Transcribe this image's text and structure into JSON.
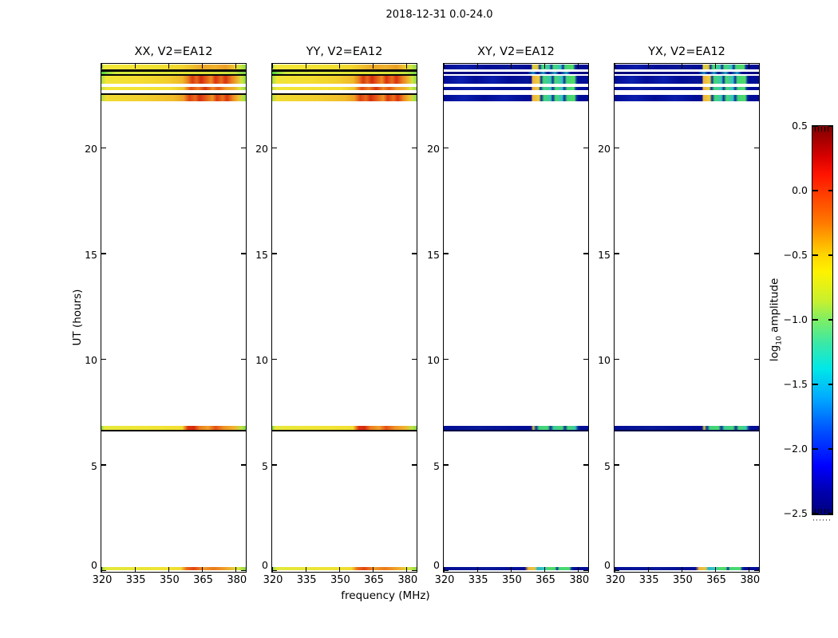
{
  "figure": {
    "title": "2018-12-31 0.0-24.0",
    "xlabel": "frequency (MHz)",
    "ylabel": "UT (hours)"
  },
  "panels": [
    {
      "id": "xx",
      "title": "XX, V2=EA12",
      "pol": "warm"
    },
    {
      "id": "yy",
      "title": "YY, V2=EA12",
      "pol": "warm"
    },
    {
      "id": "xy",
      "title": "XY, V2=EA12",
      "pol": "cool"
    },
    {
      "id": "yx",
      "title": "YX, V2=EA12",
      "pol": "cool"
    }
  ],
  "axes": {
    "x_ticks": [
      320,
      335,
      350,
      365,
      380
    ],
    "x_range": [
      320,
      384
    ],
    "y_ticks": [
      0,
      5,
      10,
      15,
      20
    ],
    "y_range": [
      0,
      24
    ]
  },
  "colorbar": {
    "label_prefix": "log",
    "label_sub": "10",
    "label_suffix": " amplitude",
    "min": -2.5,
    "max": 0.5,
    "ticks": [
      {
        "label": "0.5",
        "value": 0.5
      },
      {
        "label": "0.0",
        "value": 0.0
      },
      {
        "label": "−0.5",
        "value": -0.5
      },
      {
        "label": "−1.0",
        "value": -1.0
      },
      {
        "label": "−1.5",
        "value": -1.5
      },
      {
        "label": "−2.0",
        "value": -2.0
      },
      {
        "label": "−2.5",
        "value": -2.5
      }
    ]
  },
  "scans": [
    {
      "ut": [
        23.72,
        23.97
      ],
      "warm": "wA",
      "cool": "cA"
    },
    {
      "ut": [
        23.62,
        23.72
      ],
      "warm": "dark",
      "cool": "none"
    },
    {
      "ut": [
        23.51,
        23.62
      ],
      "warm": "wB",
      "cool": "cB"
    },
    {
      "ut": [
        23.43,
        23.51
      ],
      "warm": "dark",
      "cool": "none"
    },
    {
      "ut": [
        23.07,
        23.43
      ],
      "warm": "wC",
      "cool": "cC"
    },
    {
      "ut": [
        22.74,
        22.91
      ],
      "warm": "wD",
      "cool": "cD"
    },
    {
      "ut": [
        22.52,
        22.59
      ],
      "warm": "dark",
      "cool": "none"
    },
    {
      "ut": [
        22.24,
        22.52
      ],
      "warm": "wE",
      "cool": "cE"
    },
    {
      "ut": [
        6.68,
        6.87
      ],
      "warm": "wMid",
      "cool": "cMid"
    },
    {
      "ut": [
        6.6,
        6.68
      ],
      "warm": "dark",
      "cool": "cdark"
    },
    {
      "ut": [
        0.02,
        0.17
      ],
      "warm": "wBot",
      "cool": "cBot"
    }
  ],
  "palette": {
    "bright_yellow": "#f2e032",
    "bright_orange": "#ee9424",
    "bright_red": "#d62f0f",
    "edge_green": "#84d848",
    "faint_navy": "#000d96",
    "faint_cyan": "#36c3c0",
    "faint_green": "#46d773",
    "faint_orange_blob": "#f0b13c"
  },
  "chart_data": {
    "type": "heatmap",
    "title": "2018-12-31 0.0-24.0",
    "xlabel": "frequency (MHz)",
    "ylabel": "UT (hours)",
    "x_range_mhz": [
      320,
      384
    ],
    "x_ticks": [
      320,
      335,
      350,
      365,
      380
    ],
    "y_range_hours": [
      0,
      24
    ],
    "y_ticks": [
      0,
      5,
      10,
      15,
      20
    ],
    "colorbar": {
      "label": "log10 amplitude",
      "min": -2.5,
      "max": 0.5,
      "ticks": [
        0.5,
        0.0,
        -0.5,
        -1.0,
        -1.5,
        -2.0,
        -2.5
      ],
      "colormap": "jet"
    },
    "panels": [
      {
        "title": "XX, V2=EA12",
        "amplitude": "bright: ~ -0.5 (yellow) at 320-358 MHz, rising to ~0 to +0.2 (orange/red blobs) at 358-381 MHz, ~ -1 (green) at panel edges"
      },
      {
        "title": "YY, V2=EA12",
        "amplitude": "same pattern as XX"
      },
      {
        "title": "XY, V2=EA12",
        "amplitude": "faint: ~ -2.3 (dark blue) at 320-358 MHz; blocks of ~ -1 to -0.7 (green/cyan) and ~ -0.4 (orange) at 358-379 MHz"
      },
      {
        "title": "YX, V2=EA12",
        "amplitude": "same pattern as XY"
      }
    ],
    "scan_times_ut": [
      [
        0.0,
        0.2
      ],
      [
        6.6,
        6.9
      ],
      [
        22.2,
        22.6
      ],
      [
        22.7,
        22.9
      ],
      [
        23.1,
        23.4
      ],
      [
        23.5,
        23.6
      ],
      [
        23.7,
        24.0
      ]
    ],
    "background": "white (no data outside scan times)"
  }
}
